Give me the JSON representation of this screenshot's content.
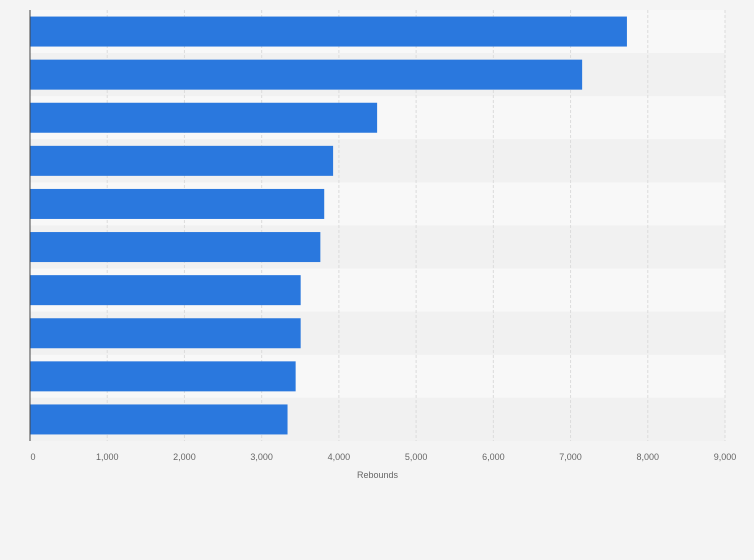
{
  "chart_data": {
    "type": "bar",
    "orientation": "horizontal",
    "categories": [
      "",
      "",
      "",
      "",
      "",
      "",
      "",
      "",
      "",
      ""
    ],
    "values": [
      7730,
      7150,
      4495,
      3925,
      3810,
      3760,
      3505,
      3505,
      3440,
      3335
    ],
    "title": "",
    "xlabel": "Rebounds",
    "ylabel": "",
    "xlim": [
      0,
      9000
    ],
    "xticks": [
      0,
      1000,
      2000,
      3000,
      4000,
      5000,
      6000,
      7000,
      8000,
      9000
    ],
    "xtick_labels": [
      "0",
      "1,000",
      "2,000",
      "3,000",
      "4,000",
      "5,000",
      "6,000",
      "7,000",
      "8,000",
      "9,000"
    ],
    "grid": true,
    "legend": "none",
    "colors": {
      "bar": "#2a78de",
      "band_light": "#f8f8f8",
      "band_dark": "#f1f1f1",
      "grid": "#dcdcdc",
      "axis": "#444444"
    }
  }
}
